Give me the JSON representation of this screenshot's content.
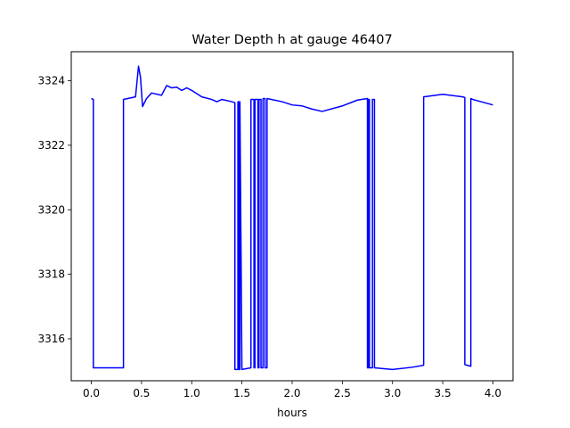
{
  "chart_data": {
    "type": "line",
    "title": "Water Depth h at gauge 46407",
    "xlabel": "hours",
    "ylabel": "",
    "xlim": [
      -0.2,
      4.2
    ],
    "ylim": [
      3314.7,
      3324.9
    ],
    "xticks": [
      0.0,
      0.5,
      1.0,
      1.5,
      2.0,
      2.5,
      3.0,
      3.5,
      4.0
    ],
    "xtick_labels": [
      "0.0",
      "0.5",
      "1.0",
      "1.5",
      "2.0",
      "2.5",
      "3.0",
      "3.5",
      "4.0"
    ],
    "yticks": [
      3316,
      3318,
      3320,
      3322,
      3324
    ],
    "ytick_labels": [
      "3316",
      "3318",
      "3320",
      "3322",
      "3324"
    ],
    "grid": false,
    "series": [
      {
        "color": "#0000ff",
        "x": [
          0.0,
          0.02,
          0.02,
          0.32,
          0.32,
          0.44,
          0.47,
          0.49,
          0.51,
          0.55,
          0.6,
          0.7,
          0.75,
          0.8,
          0.85,
          0.9,
          0.95,
          1.0,
          1.05,
          1.1,
          1.2,
          1.25,
          1.3,
          1.4,
          1.43,
          1.43,
          1.46,
          1.46,
          1.47,
          1.47,
          1.48,
          1.48,
          1.5,
          1.59,
          1.59,
          1.62,
          1.62,
          1.63,
          1.63,
          1.66,
          1.66,
          1.67,
          1.67,
          1.69,
          1.69,
          1.71,
          1.71,
          1.73,
          1.73,
          1.75,
          1.75,
          1.9,
          2.0,
          2.1,
          2.2,
          2.3,
          2.5,
          2.65,
          2.75,
          2.75,
          2.76,
          2.76,
          2.77,
          2.77,
          2.8,
          2.8,
          2.82,
          2.82,
          3.0,
          3.2,
          3.31,
          3.31,
          3.5,
          3.7,
          3.72,
          3.72,
          3.78,
          3.78,
          3.8,
          4.0
        ],
        "y": [
          3323.45,
          3323.42,
          3315.1,
          3315.1,
          3323.42,
          3323.5,
          3324.45,
          3324.1,
          3323.2,
          3323.45,
          3323.62,
          3323.55,
          3323.85,
          3323.78,
          3323.8,
          3323.7,
          3323.78,
          3323.7,
          3323.6,
          3323.5,
          3323.42,
          3323.35,
          3323.42,
          3323.35,
          3323.32,
          3315.05,
          3315.05,
          3323.35,
          3323.35,
          3315.05,
          3315.05,
          3323.35,
          3315.05,
          3315.1,
          3323.42,
          3323.42,
          3315.1,
          3315.1,
          3323.42,
          3323.42,
          3315.1,
          3315.1,
          3323.42,
          3323.42,
          3315.1,
          3315.1,
          3323.45,
          3323.45,
          3315.1,
          3315.1,
          3323.45,
          3323.35,
          3323.25,
          3323.22,
          3323.12,
          3323.05,
          3323.22,
          3323.4,
          3323.45,
          3315.1,
          3315.1,
          3323.42,
          3323.42,
          3315.1,
          3315.1,
          3323.42,
          3323.42,
          3315.1,
          3315.05,
          3315.12,
          3315.18,
          3323.5,
          3323.58,
          3323.5,
          3323.48,
          3315.2,
          3315.15,
          3323.45,
          3323.42,
          3323.25
        ]
      }
    ]
  }
}
